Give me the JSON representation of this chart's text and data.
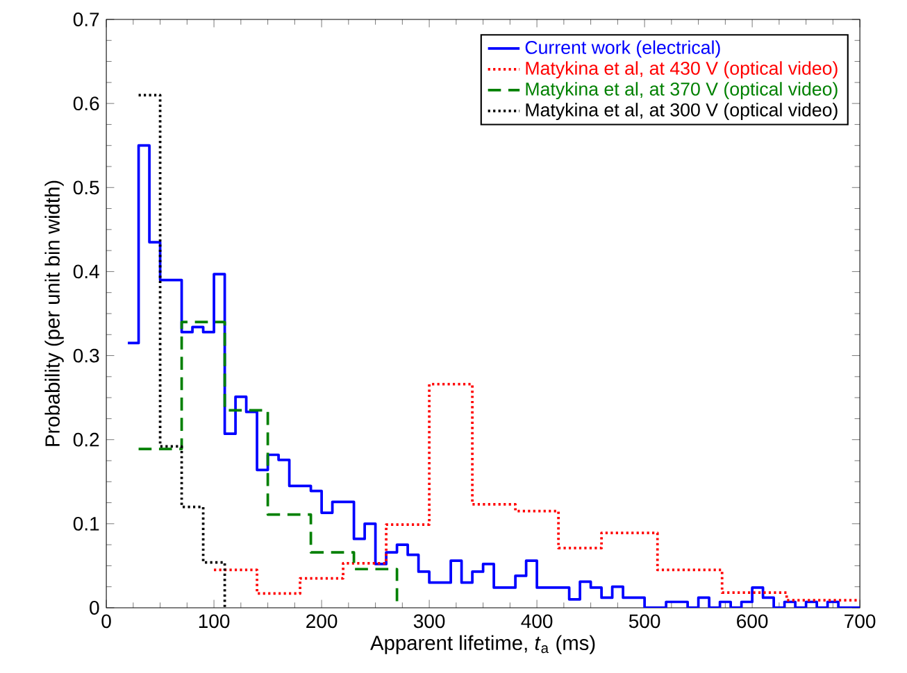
{
  "chart_data": {
    "type": "step",
    "xlabel": "Apparent lifetime, *t*$_{a}$ (ms)",
    "ylabel": "Probability (per unit bin width)",
    "xlim": [
      0,
      700
    ],
    "xticks": [
      0,
      100,
      200,
      300,
      400,
      500,
      600,
      700
    ],
    "ylim": [
      0,
      0.7
    ],
    "yticks": [
      0,
      0.1,
      0.2,
      0.3,
      0.4,
      0.5,
      0.6,
      0.7
    ],
    "legend": "top right",
    "grid": false,
    "series": [
      {
        "name": "Current work (electrical)",
        "color": "#0000ff",
        "line_style": "solid",
        "x": [
          20,
          30,
          40,
          50,
          60,
          70,
          80,
          90,
          100,
          110,
          120,
          130,
          140,
          150,
          160,
          170,
          180,
          190,
          200,
          210,
          220,
          230,
          240,
          250,
          260,
          270,
          280,
          290,
          300,
          310,
          320,
          330,
          340,
          350,
          360,
          370,
          380,
          390,
          400,
          410,
          420,
          430,
          440,
          450,
          460,
          470,
          480,
          490,
          500,
          510,
          520,
          530,
          540,
          550,
          560,
          570,
          580,
          590,
          600,
          610,
          620,
          630,
          640,
          650,
          660,
          670,
          680,
          690,
          700
        ],
        "values": [
          0.315,
          0.55,
          0.435,
          0.39,
          0.39,
          0.328,
          0.334,
          0.328,
          0.397,
          0.207,
          0.251,
          0.233,
          0.164,
          0.182,
          0.176,
          0.145,
          0.145,
          0.139,
          0.113,
          0.126,
          0.126,
          0.082,
          0.1,
          0.052,
          0.066,
          0.075,
          0.063,
          0.043,
          0.03,
          0.03,
          0.056,
          0.03,
          0.043,
          0.052,
          0.024,
          0.024,
          0.038,
          0.056,
          0.024,
          0.024,
          0.024,
          0.01,
          0.031,
          0.024,
          0.012,
          0.025,
          0.012,
          0.012,
          0,
          0,
          0.007,
          0.007,
          0,
          0.012,
          0,
          0.007,
          0,
          0.007,
          0.024,
          0.012,
          0,
          0.007,
          0,
          0.007,
          0,
          0.007,
          0,
          0,
          0
        ]
      },
      {
        "name": "Matykina et al, at 430 V (optical video)",
        "color": "#ff0000",
        "line_style": "dotted",
        "x": [
          100,
          140,
          180,
          220,
          260,
          300,
          340,
          380,
          420,
          460,
          512,
          572,
          632,
          700
        ],
        "values": [
          0.045,
          0.017,
          0.035,
          0.053,
          0.099,
          0.266,
          0.123,
          0.115,
          0.071,
          0.089,
          0.045,
          0.018,
          0.009,
          0.009
        ]
      },
      {
        "name": "Matykina et al, at 370 V (optical video)",
        "color": "#008000",
        "line_style": "dashed",
        "x": [
          30,
          70,
          110,
          150,
          190,
          230,
          270
        ],
        "values": [
          0.189,
          0.34,
          0.235,
          0.111,
          0.066,
          0.046,
          0
        ]
      },
      {
        "name": "Matykina et al, at 300 V (optical video)",
        "color": "#000000",
        "line_style": "dotted",
        "x": [
          30,
          50,
          70,
          90,
          110
        ],
        "values": [
          0.61,
          0.192,
          0.12,
          0.054,
          0
        ]
      }
    ]
  }
}
